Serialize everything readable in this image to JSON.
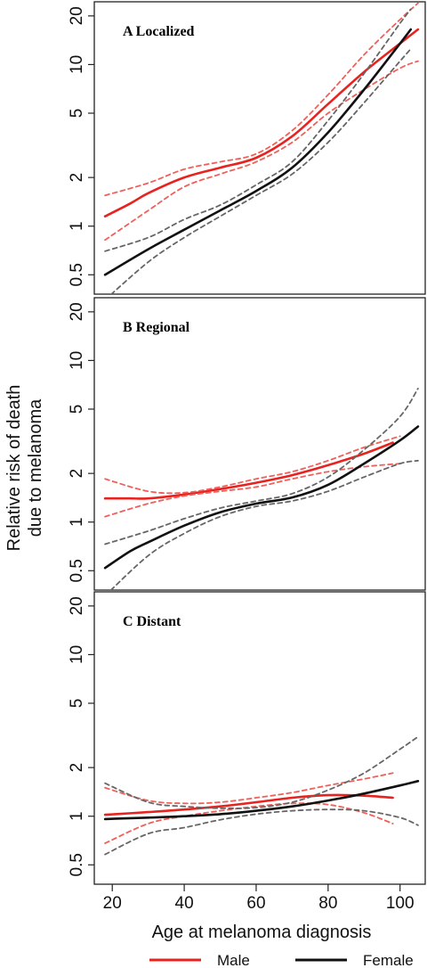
{
  "chart_data": {
    "type": "line",
    "ylabel_line1": "Relative risk of death",
    "ylabel_line2": "due to melanoma",
    "xlabel": "Age at melanoma diagnosis",
    "x_ticks": [
      20,
      40,
      60,
      80,
      100
    ],
    "xlim": [
      15,
      107
    ],
    "y_scale": "log",
    "y_ticks": [
      0.5,
      1,
      2,
      5,
      10,
      20
    ],
    "y_tick_labels": [
      "0.5",
      "1",
      "2",
      "5",
      "10",
      "20"
    ],
    "ylim": [
      0.42,
      21
    ],
    "colors": {
      "Male": "#e8231f",
      "Female": "#111111",
      "male_ci": "#f0605a",
      "female_ci": "#666666"
    },
    "legend": [
      {
        "name": "Male",
        "color": "#e8231f"
      },
      {
        "name": "Female",
        "color": "#111111"
      }
    ],
    "legend_position": "bottom",
    "panels": [
      {
        "label": "A  Localized",
        "series": [
          {
            "name": "Male",
            "x": [
              18,
              25,
              30,
              40,
              50,
              60,
              70,
              80,
              90,
              100,
              105
            ],
            "y": [
              1.15,
              1.38,
              1.6,
              2.0,
              2.3,
              2.65,
              3.6,
              5.7,
              9.0,
              13.5,
              16.5
            ]
          },
          {
            "name": "Male_lower",
            "x": [
              18,
              30,
              40,
              50,
              60,
              70,
              80,
              90,
              100,
              105
            ],
            "y": [
              0.82,
              1.25,
              1.75,
              2.1,
              2.5,
              3.3,
              5.0,
              7.0,
              9.5,
              10.5
            ]
          },
          {
            "name": "Male_upper",
            "x": [
              18,
              30,
              40,
              50,
              60,
              70,
              80,
              90,
              100,
              105
            ],
            "y": [
              1.55,
              1.85,
              2.25,
              2.5,
              2.8,
              3.9,
              6.5,
              11.5,
              19,
              24
            ]
          },
          {
            "name": "Female",
            "x": [
              18,
              30,
              40,
              50,
              60,
              70,
              80,
              90,
              100,
              103
            ],
            "y": [
              0.5,
              0.72,
              0.95,
              1.25,
              1.65,
              2.3,
              3.8,
              7.0,
              13.5,
              16.5
            ]
          },
          {
            "name": "Female_lower",
            "x": [
              18,
              30,
              40,
              50,
              60,
              70,
              80,
              90,
              100,
              103
            ],
            "y": [
              0.35,
              0.6,
              0.85,
              1.15,
              1.55,
              2.1,
              3.3,
              5.8,
              10.5,
              12.5
            ]
          },
          {
            "name": "Female_upper",
            "x": [
              18,
              30,
              40,
              50,
              60,
              70,
              80,
              90,
              100,
              103
            ],
            "y": [
              0.7,
              0.85,
              1.1,
              1.35,
              1.8,
              2.5,
              4.5,
              8.8,
              18,
              22
            ]
          }
        ]
      },
      {
        "label": "B  Regional",
        "series": [
          {
            "name": "Male",
            "x": [
              18,
              25,
              30,
              40,
              50,
              60,
              70,
              80,
              90,
              98
            ],
            "y": [
              1.4,
              1.4,
              1.4,
              1.48,
              1.6,
              1.75,
              1.95,
              2.25,
              2.65,
              3.1
            ]
          },
          {
            "name": "Male_lower",
            "x": [
              18,
              30,
              40,
              50,
              60,
              70,
              80,
              90,
              100
            ],
            "y": [
              1.08,
              1.3,
              1.45,
              1.55,
              1.65,
              1.85,
              2.05,
              2.2,
              2.3
            ]
          },
          {
            "name": "Male_upper",
            "x": [
              18,
              30,
              40,
              50,
              60,
              70,
              80,
              90,
              100
            ],
            "y": [
              1.85,
              1.55,
              1.52,
              1.65,
              1.85,
              2.05,
              2.4,
              2.9,
              3.4
            ]
          },
          {
            "name": "Female",
            "x": [
              18,
              25,
              30,
              40,
              50,
              60,
              70,
              80,
              90,
              100,
              105
            ],
            "y": [
              0.52,
              0.66,
              0.75,
              0.95,
              1.15,
              1.3,
              1.42,
              1.7,
              2.3,
              3.2,
              3.9
            ]
          },
          {
            "name": "Female_lower",
            "x": [
              18,
              30,
              40,
              50,
              60,
              70,
              80,
              90,
              100,
              105
            ],
            "y": [
              0.35,
              0.62,
              0.85,
              1.08,
              1.25,
              1.35,
              1.55,
              1.9,
              2.3,
              2.4
            ]
          },
          {
            "name": "Female_upper",
            "x": [
              18,
              30,
              40,
              50,
              60,
              70,
              80,
              90,
              100,
              105
            ],
            "y": [
              0.73,
              0.88,
              1.05,
              1.22,
              1.35,
              1.5,
              1.9,
              2.8,
              4.5,
              6.7
            ]
          }
        ]
      },
      {
        "label": "C  Distant",
        "series": [
          {
            "name": "Male",
            "x": [
              18,
              30,
              40,
              50,
              60,
              70,
              80,
              90,
              98
            ],
            "y": [
              1.02,
              1.06,
              1.1,
              1.15,
              1.22,
              1.3,
              1.35,
              1.34,
              1.3
            ]
          },
          {
            "name": "Male_lower",
            "x": [
              18,
              30,
              40,
              50,
              60,
              70,
              80,
              90,
              98
            ],
            "y": [
              0.68,
              0.9,
              1.0,
              1.08,
              1.15,
              1.2,
              1.18,
              1.05,
              0.9
            ]
          },
          {
            "name": "Male_upper",
            "x": [
              18,
              30,
              40,
              50,
              60,
              70,
              80,
              90,
              98
            ],
            "y": [
              1.5,
              1.25,
              1.2,
              1.22,
              1.3,
              1.4,
              1.55,
              1.7,
              1.85
            ]
          },
          {
            "name": "Female",
            "x": [
              18,
              30,
              40,
              50,
              60,
              70,
              80,
              90,
              100,
              105
            ],
            "y": [
              0.96,
              0.98,
              1.0,
              1.03,
              1.08,
              1.15,
              1.25,
              1.38,
              1.55,
              1.65
            ]
          },
          {
            "name": "Female_lower",
            "x": [
              18,
              30,
              40,
              50,
              60,
              70,
              80,
              90,
              100,
              105
            ],
            "y": [
              0.58,
              0.78,
              0.85,
              0.95,
              1.03,
              1.08,
              1.1,
              1.08,
              0.98,
              0.88
            ]
          },
          {
            "name": "Female_upper",
            "x": [
              18,
              30,
              40,
              50,
              60,
              70,
              80,
              90,
              100,
              105
            ],
            "y": [
              1.6,
              1.22,
              1.15,
              1.12,
              1.13,
              1.22,
              1.45,
              1.85,
              2.6,
              3.1
            ]
          }
        ]
      }
    ]
  }
}
